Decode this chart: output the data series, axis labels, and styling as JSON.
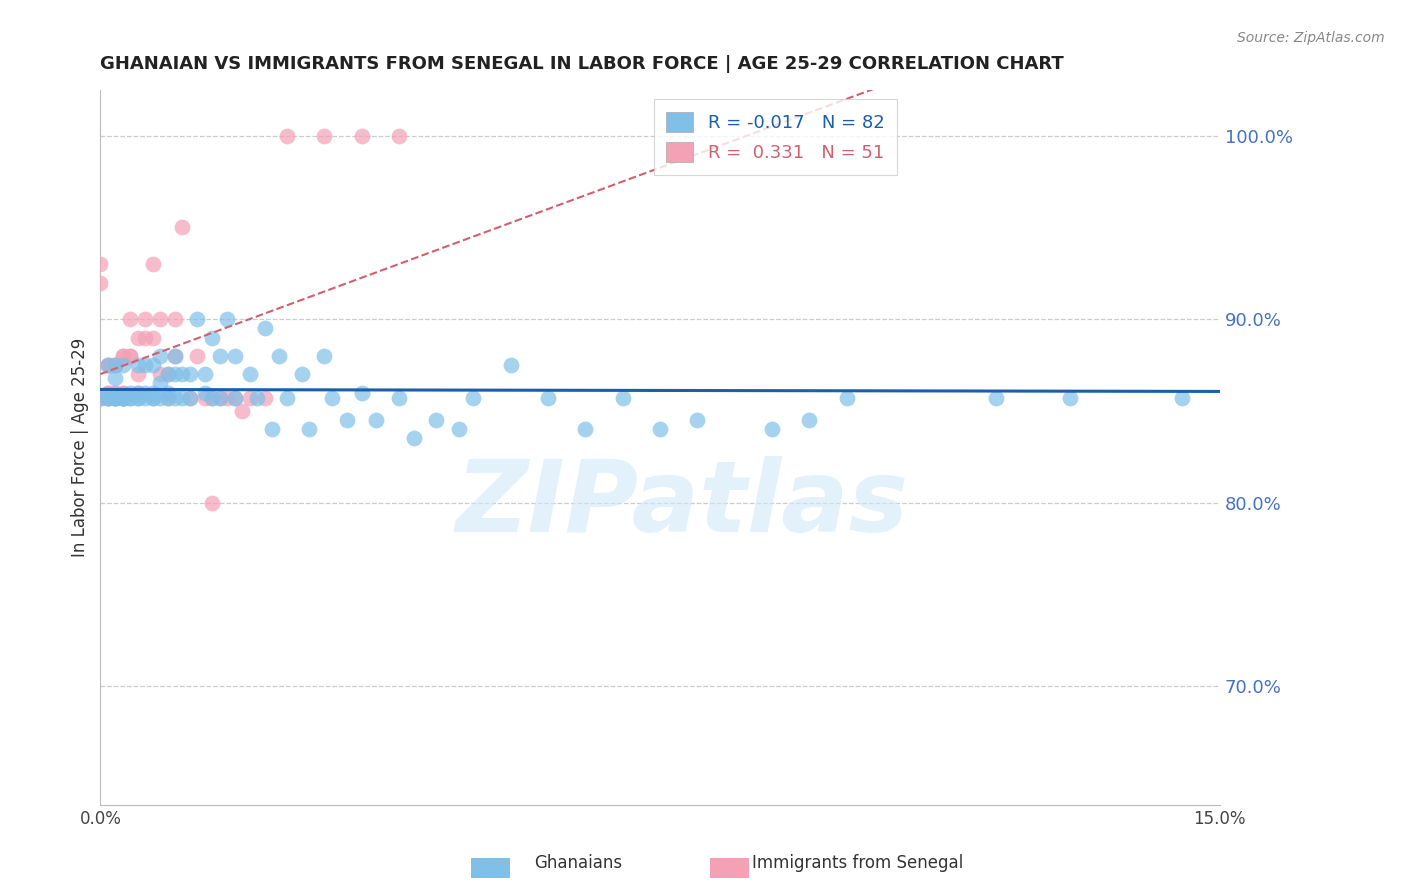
{
  "title": "GHANAIAN VS IMMIGRANTS FROM SENEGAL IN LABOR FORCE | AGE 25-29 CORRELATION CHART",
  "source": "Source: ZipAtlas.com",
  "ylabel": "In Labor Force | Age 25-29",
  "xlim": [
    0.0,
    0.15
  ],
  "ylim": [
    0.635,
    1.025
  ],
  "right_yticks": [
    0.7,
    0.8,
    0.9,
    1.0
  ],
  "right_yticklabels": [
    "70.0%",
    "80.0%",
    "90.0%",
    "100.0%"
  ],
  "xticks": [
    0.0,
    0.025,
    0.05,
    0.075,
    0.1,
    0.125,
    0.15
  ],
  "xticklabels": [
    "0.0%",
    "",
    "",
    "",
    "",
    "",
    "15.0%"
  ],
  "blue_color": "#7fbfe8",
  "pink_color": "#f4a0b5",
  "blue_line_color": "#1a5fa8",
  "pink_line_color": "#d06070",
  "watermark": "ZIPatlas",
  "watermark_color": "#d0e8f8",
  "blue_R": -0.017,
  "pink_R": 0.331,
  "blue_N": 82,
  "pink_N": 51,
  "blue_scatter_x": [
    0.0,
    0.001,
    0.001,
    0.001,
    0.002,
    0.002,
    0.002,
    0.002,
    0.002,
    0.003,
    0.003,
    0.003,
    0.003,
    0.003,
    0.003,
    0.004,
    0.004,
    0.004,
    0.005,
    0.005,
    0.005,
    0.005,
    0.006,
    0.006,
    0.006,
    0.007,
    0.007,
    0.007,
    0.007,
    0.008,
    0.008,
    0.008,
    0.009,
    0.009,
    0.009,
    0.01,
    0.01,
    0.01,
    0.011,
    0.011,
    0.012,
    0.012,
    0.013,
    0.014,
    0.014,
    0.015,
    0.015,
    0.016,
    0.016,
    0.017,
    0.018,
    0.018,
    0.02,
    0.021,
    0.022,
    0.023,
    0.024,
    0.025,
    0.027,
    0.028,
    0.03,
    0.031,
    0.033,
    0.035,
    0.037,
    0.04,
    0.042,
    0.045,
    0.048,
    0.05,
    0.055,
    0.06,
    0.065,
    0.07,
    0.075,
    0.08,
    0.09,
    0.095,
    0.1,
    0.12,
    0.13,
    0.145
  ],
  "blue_scatter_y": [
    0.857,
    0.857,
    0.875,
    0.857,
    0.875,
    0.857,
    0.857,
    0.857,
    0.868,
    0.875,
    0.857,
    0.857,
    0.857,
    0.857,
    0.857,
    0.86,
    0.857,
    0.857,
    0.857,
    0.86,
    0.875,
    0.857,
    0.875,
    0.86,
    0.857,
    0.875,
    0.86,
    0.857,
    0.857,
    0.88,
    0.865,
    0.857,
    0.87,
    0.86,
    0.857,
    0.88,
    0.87,
    0.857,
    0.87,
    0.857,
    0.87,
    0.857,
    0.9,
    0.87,
    0.86,
    0.89,
    0.857,
    0.88,
    0.857,
    0.9,
    0.88,
    0.857,
    0.87,
    0.857,
    0.895,
    0.84,
    0.88,
    0.857,
    0.87,
    0.84,
    0.88,
    0.857,
    0.845,
    0.86,
    0.845,
    0.857,
    0.835,
    0.845,
    0.84,
    0.857,
    0.875,
    0.857,
    0.84,
    0.857,
    0.84,
    0.845,
    0.84,
    0.845,
    0.857,
    0.857,
    0.857,
    0.857
  ],
  "pink_scatter_x": [
    0.0,
    0.0,
    0.0,
    0.0,
    0.001,
    0.001,
    0.001,
    0.001,
    0.001,
    0.001,
    0.002,
    0.002,
    0.002,
    0.002,
    0.002,
    0.003,
    0.003,
    0.003,
    0.003,
    0.004,
    0.004,
    0.004,
    0.005,
    0.005,
    0.005,
    0.006,
    0.006,
    0.007,
    0.007,
    0.008,
    0.008,
    0.009,
    0.009,
    0.01,
    0.01,
    0.011,
    0.012,
    0.013,
    0.014,
    0.015,
    0.015,
    0.016,
    0.017,
    0.018,
    0.019,
    0.02,
    0.022,
    0.025,
    0.03,
    0.035,
    0.04
  ],
  "pink_scatter_y": [
    0.93,
    0.92,
    0.857,
    0.857,
    0.875,
    0.875,
    0.86,
    0.86,
    0.857,
    0.857,
    0.875,
    0.875,
    0.86,
    0.86,
    0.857,
    0.88,
    0.88,
    0.86,
    0.86,
    0.88,
    0.88,
    0.9,
    0.89,
    0.87,
    0.86,
    0.9,
    0.89,
    0.93,
    0.89,
    0.87,
    0.9,
    0.857,
    0.87,
    0.88,
    0.9,
    0.95,
    0.857,
    0.88,
    0.857,
    0.857,
    0.8,
    0.857,
    0.857,
    0.857,
    0.85,
    0.857,
    0.857,
    1.0,
    1.0,
    1.0,
    1.0
  ]
}
